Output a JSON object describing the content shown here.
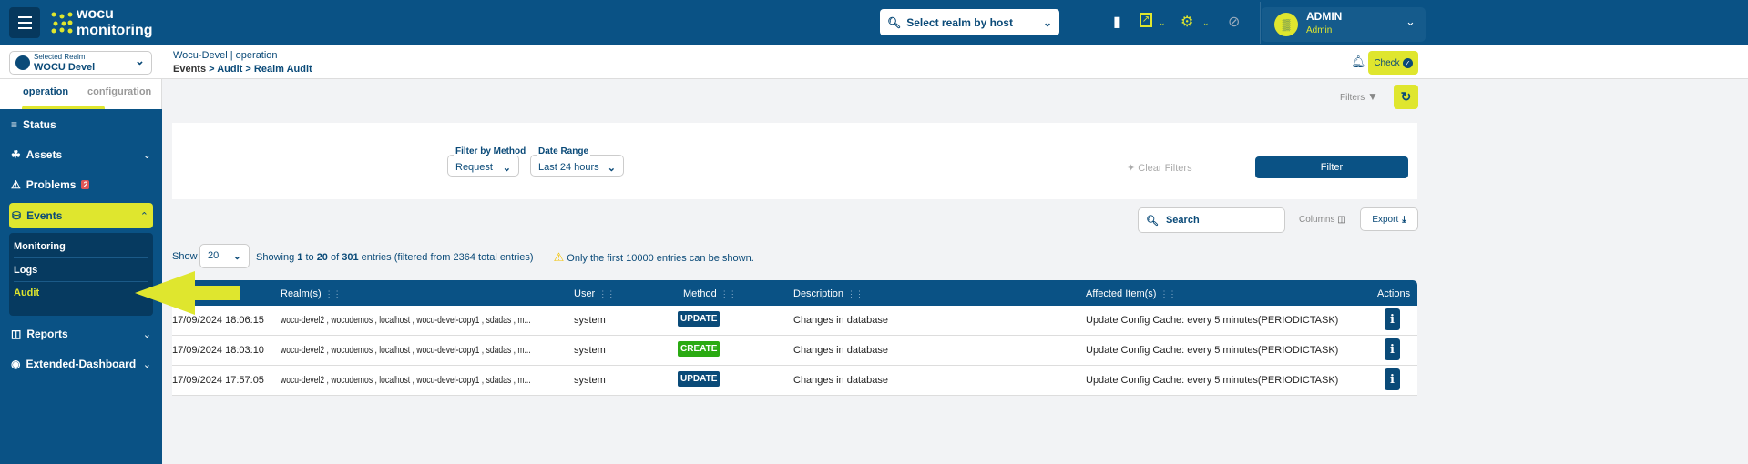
{
  "app": {
    "logo_line1": "wocu",
    "logo_line2": "monitoring"
  },
  "topbar": {
    "realm_search_placeholder": "Select realm by host",
    "user_name": "ADMIN",
    "user_role": "Admin"
  },
  "subheader": {
    "realm_label": "Selected Realm",
    "realm_value": "WOCU Devel",
    "context": "Wocu-Devel | operation",
    "breadcrumb": [
      "Events",
      ">",
      "Audit",
      ">",
      "Realm Audit"
    ],
    "check_label": "Check"
  },
  "sidebar": {
    "tabs": [
      {
        "label": "operation",
        "active": true
      },
      {
        "label": "configuration",
        "active": false
      }
    ],
    "items": [
      {
        "label": "Status"
      },
      {
        "label": "Assets"
      },
      {
        "label": "Problems",
        "badge": "2"
      },
      {
        "label": "Events"
      },
      {
        "label": "Reports"
      },
      {
        "label": "Extended-Dashboard"
      }
    ],
    "events_sub": [
      {
        "label": "Monitoring"
      },
      {
        "label": "Logs"
      },
      {
        "label": "Audit",
        "active": true
      }
    ]
  },
  "toolbar": {
    "filters_label": "Filters"
  },
  "filters": {
    "method_label": "Filter by Method",
    "method_value": "Request",
    "date_label": "Date Range",
    "date_value": "Last 24 hours",
    "clear_label": "Clear Filters",
    "filter_label": "Filter"
  },
  "table_tools": {
    "search_placeholder": "Search",
    "columns_label": "Columns",
    "export_label": "Export"
  },
  "info": {
    "show_label": "Show",
    "page_size": "20",
    "showing_pre": "Showing ",
    "from": "1",
    "to_word": " to ",
    "to": "20",
    "of_word": " of ",
    "total": "301",
    "showing_post": " entries (filtered from 2364 total entries)",
    "warning": "Only the first 10000 entries can be shown."
  },
  "table": {
    "columns": [
      "Realm(s)",
      "User",
      "Method",
      "Description",
      "Affected Item(s)",
      "Actions"
    ],
    "rows": [
      {
        "date": "17/09/2024 18:06:15",
        "realms": "wocu-devel2 , wocudemos , localhost , wocu-devel-copy1 , sdadas , m...",
        "user": "system",
        "method": "UPDATE",
        "description": "Changes in database",
        "affected": "Update Config Cache: every 5 minutes(PERIODICTASK)"
      },
      {
        "date": "17/09/2024 18:03:10",
        "realms": "wocu-devel2 , wocudemos , localhost , wocu-devel-copy1 , sdadas , m...",
        "user": "system",
        "method": "CREATE",
        "description": "Changes in database",
        "affected": "Update Config Cache: every 5 minutes(PERIODICTASK)"
      },
      {
        "date": "17/09/2024 17:57:05",
        "realms": "wocu-devel2 , wocudemos , localhost , wocu-devel-copy1 , sdadas , m...",
        "user": "system",
        "method": "UPDATE",
        "description": "Changes in database",
        "affected": "Update Config Cache: every 5 minutes(PERIODICTASK)"
      }
    ]
  },
  "colors": {
    "primary": "#0a5285",
    "accent": "#dfe62e",
    "update": "#0a4a78",
    "create": "#2aaa12",
    "problem_badge": "#e05555"
  }
}
